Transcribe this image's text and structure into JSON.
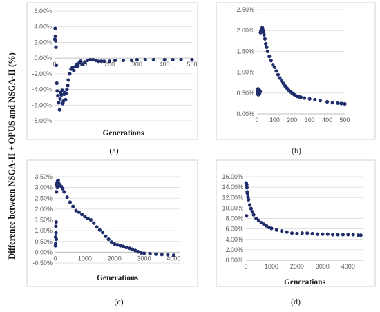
{
  "figure": {
    "ylabel": "Difference between NSGA-II + OPUS and NSGA-II (%)",
    "marker_color": "#1f2d6b"
  },
  "chart_data": [
    {
      "type": "scatter",
      "panel_label": "(a)",
      "xlabel": "Generations",
      "xlim": [
        0,
        500
      ],
      "ylim": [
        -0.08,
        0.06
      ],
      "xticks": [
        "0",
        "100",
        "200",
        "300",
        "400",
        "500"
      ],
      "yticks": [
        "6.00%",
        "4.00%",
        "2.00%",
        "0.00%",
        "-2.00%",
        "-4.00%",
        "-6.00%",
        "-8.00%"
      ],
      "xtick_values": [
        0,
        100,
        200,
        300,
        400,
        500
      ],
      "ytick_values": [
        0.06,
        0.04,
        0.02,
        0.0,
        -0.02,
        -0.04,
        -0.06,
        -0.08
      ],
      "x": [
        1,
        2,
        3,
        4,
        5,
        6,
        8,
        10,
        12,
        15,
        18,
        20,
        22,
        25,
        28,
        30,
        32,
        35,
        38,
        40,
        42,
        45,
        48,
        50,
        55,
        60,
        65,
        70,
        75,
        80,
        85,
        90,
        95,
        100,
        110,
        120,
        130,
        140,
        150,
        160,
        170,
        180,
        200,
        220,
        250,
        280,
        300,
        330,
        360,
        400,
        430,
        460,
        500
      ],
      "y": [
        0.024,
        0.038,
        0.028,
        0.022,
        0.014,
        -0.009,
        -0.032,
        -0.042,
        -0.048,
        -0.057,
        -0.066,
        -0.052,
        -0.044,
        -0.047,
        -0.041,
        -0.058,
        -0.055,
        -0.046,
        -0.044,
        -0.053,
        -0.045,
        -0.04,
        -0.035,
        -0.028,
        -0.02,
        -0.014,
        -0.012,
        -0.016,
        -0.011,
        -0.008,
        -0.01,
        -0.006,
        -0.004,
        -0.008,
        -0.005,
        -0.003,
        -0.002,
        -0.002,
        -0.003,
        -0.004,
        -0.004,
        -0.004,
        -0.004,
        -0.003,
        -0.003,
        -0.003,
        -0.002,
        -0.002,
        -0.002,
        -0.002,
        -0.002,
        -0.002,
        -0.002
      ]
    },
    {
      "type": "scatter",
      "panel_label": "(b)",
      "xlabel": "",
      "xlim": [
        0,
        500
      ],
      "ylim": [
        0,
        0.025
      ],
      "xticks": [
        "0",
        "100",
        "200",
        "300",
        "400",
        "500"
      ],
      "yticks": [
        "2.50%",
        "2.00%",
        "1.50%",
        "1.00%",
        "0.50%",
        "0.00%"
      ],
      "xtick_values": [
        0,
        100,
        200,
        300,
        400,
        500
      ],
      "ytick_values": [
        0.025,
        0.02,
        0.015,
        0.01,
        0.005,
        0.0
      ],
      "x": [
        2,
        4,
        6,
        8,
        10,
        12,
        15,
        18,
        20,
        22,
        25,
        28,
        30,
        32,
        35,
        38,
        40,
        45,
        50,
        55,
        60,
        70,
        80,
        90,
        100,
        110,
        120,
        130,
        140,
        150,
        160,
        170,
        180,
        190,
        200,
        210,
        220,
        230,
        240,
        250,
        270,
        300,
        330,
        360,
        400,
        430,
        460,
        480,
        500
      ],
      "y": [
        0.0048,
        0.0055,
        0.006,
        0.0046,
        0.0052,
        0.0058,
        0.005,
        0.0054,
        0.0195,
        0.0198,
        0.0202,
        0.0205,
        0.0207,
        0.0203,
        0.0199,
        0.0196,
        0.019,
        0.018,
        0.0168,
        0.016,
        0.015,
        0.0138,
        0.0128,
        0.0118,
        0.0112,
        0.0103,
        0.0094,
        0.0086,
        0.0079,
        0.0073,
        0.0067,
        0.0062,
        0.0057,
        0.0053,
        0.005,
        0.0047,
        0.0044,
        0.0042,
        0.0041,
        0.004,
        0.0038,
        0.0036,
        0.0034,
        0.0032,
        0.0029,
        0.0027,
        0.0026,
        0.0025,
        0.0024
      ]
    },
    {
      "type": "scatter",
      "panel_label": "(c)",
      "xlabel": "Generations",
      "xlim": [
        0,
        4200
      ],
      "ylim": [
        -0.005,
        0.035
      ],
      "xticks": [
        "0",
        "1000",
        "2000",
        "3000",
        "4000"
      ],
      "yticks": [
        "3.50%",
        "3.00%",
        "2.50%",
        "2.00%",
        "1.50%",
        "1.00%",
        "0.50%",
        "0.00%",
        "-0.50%"
      ],
      "xtick_values": [
        0,
        1000,
        2000,
        3000,
        4000
      ],
      "ytick_values": [
        0.035,
        0.03,
        0.025,
        0.02,
        0.015,
        0.01,
        0.005,
        0.0,
        -0.005
      ],
      "x": [
        5,
        10,
        15,
        20,
        25,
        30,
        35,
        40,
        50,
        60,
        70,
        80,
        90,
        100,
        120,
        150,
        200,
        250,
        300,
        400,
        500,
        600,
        700,
        800,
        900,
        1000,
        1100,
        1200,
        1300,
        1400,
        1500,
        1600,
        1700,
        1800,
        1900,
        2000,
        2100,
        2200,
        2300,
        2400,
        2500,
        2600,
        2700,
        2800,
        2900,
        3000,
        3200,
        3400,
        3600,
        3800,
        4000
      ],
      "y": [
        0.003,
        0.007,
        0.004,
        0.012,
        0.009,
        0.014,
        0.006,
        0.028,
        0.031,
        0.032,
        0.03,
        0.033,
        0.0325,
        0.0333,
        0.0318,
        0.0312,
        0.0305,
        0.0295,
        0.028,
        0.0255,
        0.0232,
        0.0212,
        0.0193,
        0.0186,
        0.0175,
        0.0165,
        0.0157,
        0.015,
        0.0135,
        0.0117,
        0.0103,
        0.0092,
        0.0074,
        0.006,
        0.0047,
        0.0038,
        0.0034,
        0.003,
        0.0027,
        0.0022,
        0.0018,
        0.0014,
        0.0008,
        0.0002,
        -0.0003,
        -0.0005,
        -0.0007,
        -0.0009,
        -0.0011,
        -0.0012,
        -0.0014
      ]
    },
    {
      "type": "scatter",
      "panel_label": "(d)",
      "xlabel": "Generations",
      "xlim": [
        0,
        4600
      ],
      "ylim": [
        0,
        0.16
      ],
      "xticks": [
        "0",
        "1000",
        "2000",
        "3000",
        "4000"
      ],
      "yticks": [
        "16.00%",
        "14.00%",
        "12.00%",
        "10.00%",
        "8.00%",
        "6.00%",
        "4.00%",
        "2.00%",
        "0.00%"
      ],
      "xtick_values": [
        0,
        1000,
        2000,
        3000,
        4000
      ],
      "ytick_values": [
        0.16,
        0.14,
        0.12,
        0.1,
        0.08,
        0.06,
        0.04,
        0.02,
        0.0
      ],
      "x": [
        10,
        20,
        30,
        40,
        50,
        60,
        80,
        100,
        150,
        200,
        250,
        300,
        400,
        500,
        600,
        700,
        800,
        900,
        1000,
        1200,
        1400,
        1600,
        1800,
        2000,
        2200,
        2400,
        2600,
        2800,
        3000,
        3200,
        3400,
        3600,
        3800,
        4000,
        4200,
        4400,
        4500
      ],
      "y": [
        0.148,
        0.085,
        0.145,
        0.139,
        0.131,
        0.128,
        0.121,
        0.116,
        0.106,
        0.099,
        0.093,
        0.087,
        0.08,
        0.076,
        0.072,
        0.069,
        0.066,
        0.063,
        0.061,
        0.058,
        0.056,
        0.054,
        0.052,
        0.051,
        0.052,
        0.052,
        0.051,
        0.05,
        0.05,
        0.05,
        0.049,
        0.049,
        0.049,
        0.049,
        0.049,
        0.048,
        0.048
      ]
    }
  ]
}
